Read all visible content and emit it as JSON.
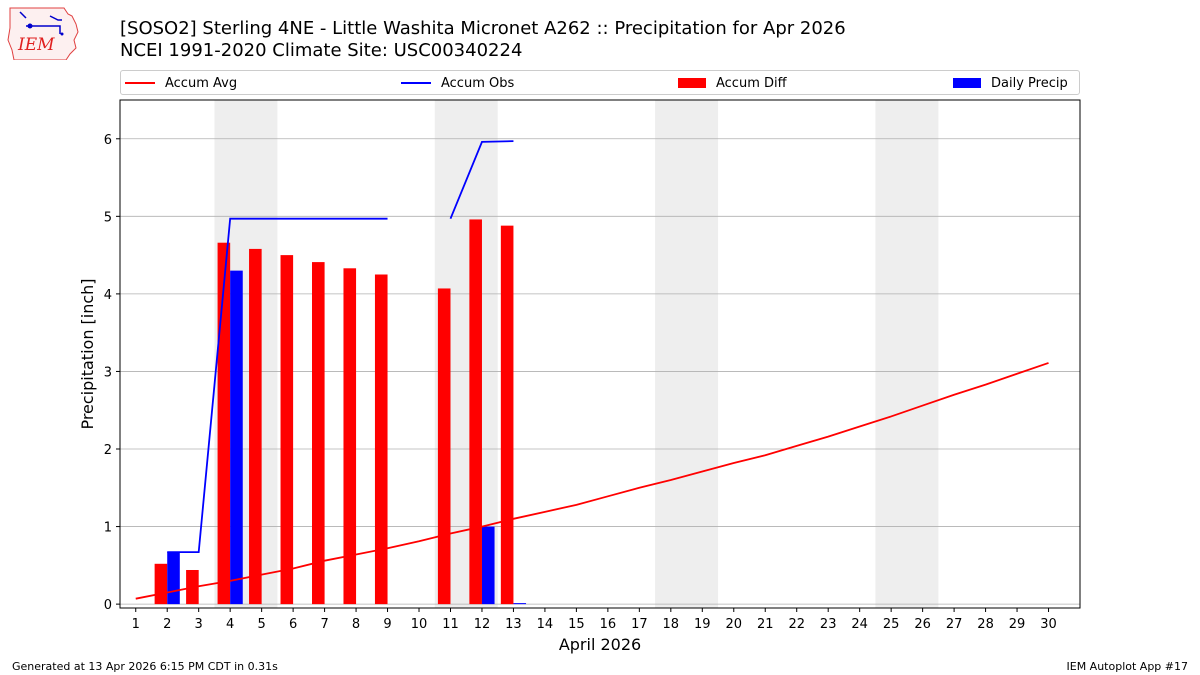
{
  "header": {
    "title_line1": "[SOSO2] Sterling 4NE - Little Washita Micronet A262 :: Precipitation for Apr 2026",
    "title_line2": "NCEI 1991-2020 Climate Site: USC00340224",
    "logo_text": "IEM"
  },
  "footer": {
    "generated": "Generated at 13 Apr 2026 6:15 PM CDT in 0.31s",
    "app": "IEM Autoplot App #17"
  },
  "colors": {
    "avg": "#ff0000",
    "obs": "#0000ff",
    "diff": "#ff0000",
    "daily": "#0000ff",
    "weekend_shade": "#eeeeee",
    "grid": "#b0b0b0"
  },
  "chart_data": {
    "type": "bar",
    "xlabel": "April 2026",
    "ylabel": "Precipitation [inch]",
    "xlim": [
      0.5,
      31
    ],
    "ylim": [
      -0.05,
      6.5
    ],
    "yticks": [
      0,
      1,
      2,
      3,
      4,
      5,
      6
    ],
    "grid": "y",
    "legend_placement": "top",
    "categories": [
      1,
      2,
      3,
      4,
      5,
      6,
      7,
      8,
      9,
      10,
      11,
      12,
      13,
      14,
      15,
      16,
      17,
      18,
      19,
      20,
      21,
      22,
      23,
      24,
      25,
      26,
      27,
      28,
      29,
      30
    ],
    "shaded_days": [
      [
        4,
        5
      ],
      [
        11,
        12
      ],
      [
        18,
        19
      ],
      [
        25,
        26
      ]
    ],
    "series": [
      {
        "name": "Accum Avg",
        "kind": "line",
        "color": "#ff0000",
        "x": [
          1,
          2,
          3,
          4,
          5,
          6,
          7,
          8,
          9,
          10,
          11,
          12,
          13,
          14,
          15,
          16,
          17,
          18,
          19,
          20,
          21,
          22,
          23,
          24,
          25,
          26,
          27,
          28,
          29,
          30
        ],
        "values": [
          0.07,
          0.15,
          0.23,
          0.3,
          0.38,
          0.46,
          0.56,
          0.64,
          0.72,
          0.81,
          0.91,
          1.0,
          1.1,
          1.19,
          1.28,
          1.39,
          1.5,
          1.6,
          1.71,
          1.82,
          1.92,
          2.04,
          2.16,
          2.29,
          2.42,
          2.56,
          2.7,
          2.83,
          2.97,
          3.11
        ]
      },
      {
        "name": "Accum Obs",
        "kind": "line",
        "color": "#0000ff",
        "segments": [
          {
            "x": [
              2,
              3,
              4,
              5,
              6,
              7,
              8,
              9
            ],
            "values": [
              0.67,
              0.67,
              4.97,
              4.97,
              4.97,
              4.97,
              4.97,
              4.97
            ]
          },
          {
            "x": [
              11,
              12,
              13
            ],
            "values": [
              4.97,
              5.96,
              5.97
            ]
          }
        ]
      },
      {
        "name": "Accum Diff",
        "kind": "bar",
        "color": "#ff0000",
        "x": [
          2,
          3,
          4,
          5,
          6,
          7,
          8,
          9,
          11,
          12,
          13
        ],
        "values": [
          0.52,
          0.44,
          4.66,
          4.58,
          4.5,
          4.41,
          4.33,
          4.25,
          4.07,
          4.96,
          4.88
        ]
      },
      {
        "name": "Daily Precip",
        "kind": "bar",
        "color": "#0000ff",
        "x": [
          2,
          4,
          12,
          13
        ],
        "values": [
          0.67,
          4.3,
          1.0,
          0.01
        ]
      }
    ]
  }
}
